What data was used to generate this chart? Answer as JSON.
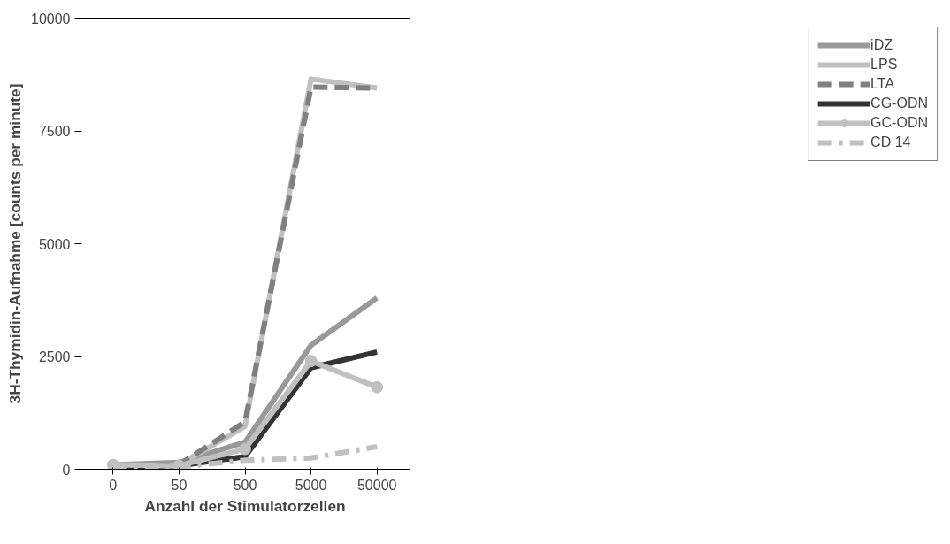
{
  "chart_data": {
    "type": "line",
    "xlabel": "Anzahl der Stimulatorzellen",
    "ylabel": "3H-Thymidin-Aufnahme [counts per minute]",
    "categories": [
      "0",
      "50",
      "500",
      "5000",
      "50000"
    ],
    "ylim": [
      0,
      10000
    ],
    "yticks": [
      0,
      2500,
      5000,
      7500,
      10000
    ],
    "grid": false,
    "legend": "right",
    "series": [
      {
        "name": "iDZ",
        "color": "#999999",
        "line_style": "solid",
        "values": [
          100,
          150,
          600,
          2750,
          3800
        ]
      },
      {
        "name": "LPS",
        "color": "#c0c0c0",
        "line_style": "solid",
        "values": [
          80,
          100,
          950,
          8650,
          8450
        ]
      },
      {
        "name": "LTA",
        "color": "#808080",
        "line_style": "dashed",
        "values": [
          80,
          100,
          1050,
          8470,
          8450
        ]
      },
      {
        "name": "CG-ODN",
        "color": "#333333",
        "line_style": "solid",
        "values": [
          60,
          80,
          280,
          2250,
          2600
        ]
      },
      {
        "name": "GC-ODN",
        "color": "#c0c0c0",
        "line_style": "solid",
        "marker": "circle",
        "values": [
          100,
          80,
          450,
          2400,
          1820
        ]
      },
      {
        "name": "CD 14",
        "color": "#c0c0c0",
        "line_style": "dashdot",
        "values": [
          50,
          50,
          200,
          250,
          500
        ]
      }
    ]
  }
}
